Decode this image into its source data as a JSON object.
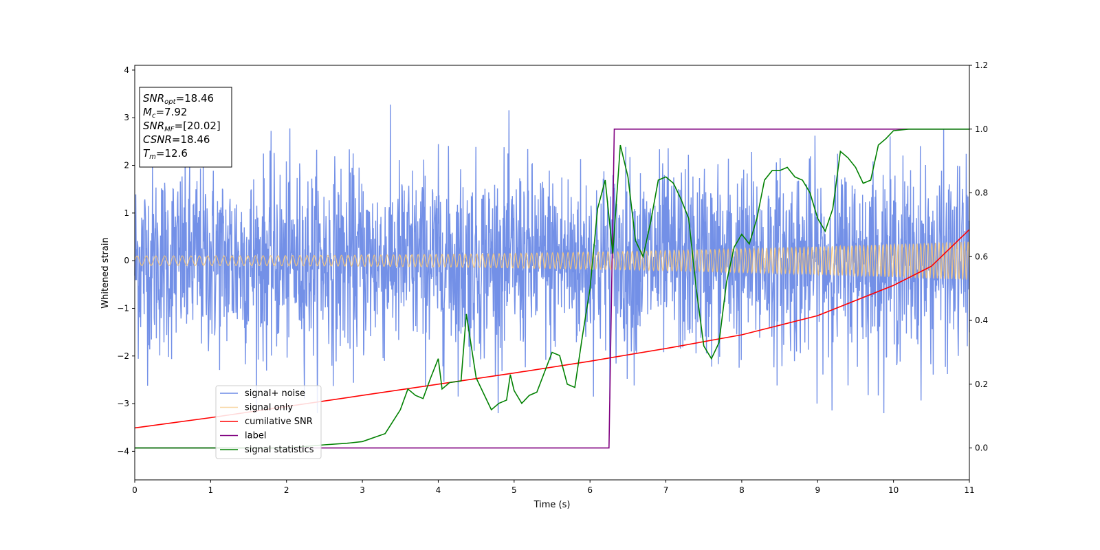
{
  "chart_data": {
    "type": "line",
    "xlabel": "Time (s)",
    "ylabel": "Whitened strain",
    "xlim": [
      0,
      11
    ],
    "ylim_left": [
      -4.6,
      4.1
    ],
    "ylim_right": [
      -0.1,
      1.2
    ],
    "x_ticks": [
      0,
      1,
      2,
      3,
      4,
      5,
      6,
      7,
      8,
      9,
      10,
      11
    ],
    "y_ticks_left": [
      -4,
      -3,
      -2,
      -1,
      0,
      1,
      2,
      3,
      4
    ],
    "y_ticks_right": [
      0.0,
      0.2,
      0.4,
      0.6,
      0.8,
      1.0,
      1.2
    ],
    "legend_position": "lower-left",
    "series": [
      {
        "name": "signal+ noise",
        "axis": "left",
        "color": "#6b8ae6",
        "description_envelope": {
          "typical_amplitude": 2.0,
          "max_peak": 3.65,
          "min_peak": -3.35
        }
      },
      {
        "name": "signal only",
        "axis": "left",
        "color": "#f5c57a",
        "amplitude_start": 0.1,
        "amplitude_end": 0.4
      },
      {
        "name": "cumilative SNR",
        "axis": "right",
        "color": "#ff0000",
        "x": [
          0,
          1,
          2,
          3,
          4,
          5,
          6,
          7,
          8,
          9,
          10,
          10.5,
          11
        ],
        "y": [
          0.063,
          0.095,
          0.13,
          0.165,
          0.2,
          0.235,
          0.272,
          0.312,
          0.355,
          0.415,
          0.51,
          0.57,
          0.685
        ]
      },
      {
        "name": "label",
        "axis": "right",
        "color": "#800080",
        "x": [
          0,
          6.25,
          6.32,
          11
        ],
        "y": [
          0,
          0,
          1,
          1
        ]
      },
      {
        "name": "signal statistics",
        "axis": "right",
        "color": "#008000",
        "x": [
          0,
          2.0,
          2.5,
          2.8,
          3.0,
          3.3,
          3.5,
          3.6,
          3.7,
          3.8,
          3.9,
          4.0,
          4.05,
          4.15,
          4.3,
          4.37,
          4.5,
          4.7,
          4.8,
          4.9,
          4.95,
          5.0,
          5.1,
          5.2,
          5.3,
          5.5,
          5.6,
          5.7,
          5.8,
          5.9,
          6.0,
          6.1,
          6.2,
          6.3,
          6.4,
          6.5,
          6.6,
          6.7,
          6.8,
          6.9,
          7.0,
          7.1,
          7.2,
          7.3,
          7.4,
          7.5,
          7.6,
          7.7,
          7.8,
          7.9,
          8.0,
          8.1,
          8.2,
          8.3,
          8.4,
          8.5,
          8.6,
          8.7,
          8.8,
          8.9,
          9.0,
          9.1,
          9.2,
          9.3,
          9.4,
          9.5,
          9.6,
          9.7,
          9.8,
          9.9,
          10.0,
          10.2,
          10.5,
          11
        ],
        "y": [
          0.0,
          0.0,
          0.01,
          0.015,
          0.02,
          0.045,
          0.12,
          0.185,
          0.165,
          0.155,
          0.22,
          0.28,
          0.185,
          0.205,
          0.21,
          0.42,
          0.22,
          0.12,
          0.14,
          0.15,
          0.23,
          0.18,
          0.14,
          0.165,
          0.175,
          0.3,
          0.29,
          0.2,
          0.19,
          0.35,
          0.5,
          0.75,
          0.84,
          0.61,
          0.95,
          0.85,
          0.65,
          0.6,
          0.71,
          0.84,
          0.85,
          0.83,
          0.78,
          0.72,
          0.5,
          0.32,
          0.28,
          0.33,
          0.52,
          0.63,
          0.67,
          0.64,
          0.72,
          0.84,
          0.87,
          0.87,
          0.88,
          0.85,
          0.84,
          0.8,
          0.72,
          0.68,
          0.75,
          0.93,
          0.91,
          0.88,
          0.83,
          0.84,
          0.95,
          0.97,
          0.995,
          1.0,
          1.0,
          1.0
        ]
      }
    ],
    "annotation": [
      {
        "main": "SNR",
        "sub": "opt",
        "value": "=18.46"
      },
      {
        "main": "M",
        "sub": "c",
        "value": "=7.92"
      },
      {
        "main": "SNR",
        "sub": "MF",
        "value": "=[20.02]"
      },
      {
        "main": "CSNR",
        "sub": "",
        "value": "=18.46"
      },
      {
        "main": "T",
        "sub": "m",
        "value": "=12.6"
      }
    ]
  }
}
